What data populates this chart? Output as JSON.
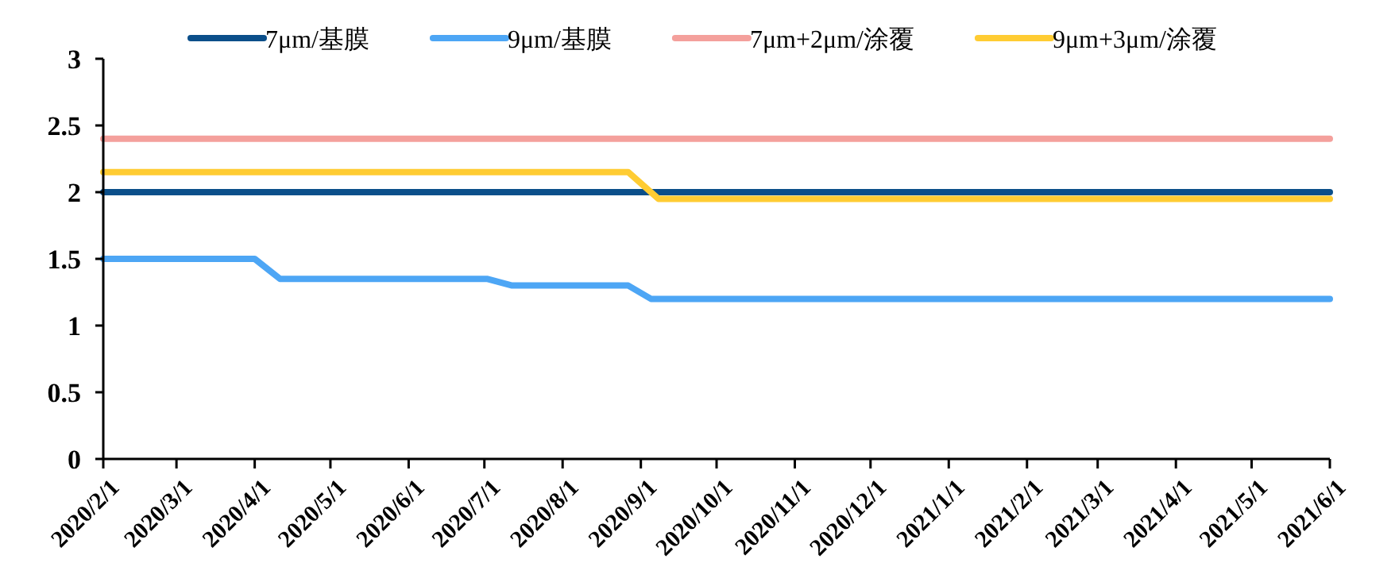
{
  "chart_data": {
    "type": "line",
    "series": [
      {
        "name": "7μm/基膜",
        "color": "#0b4f8a",
        "x": [
          "2020-02-01",
          "2021-06-01"
        ],
        "values": [
          2,
          2
        ]
      },
      {
        "name": "9μm/基膜",
        "color": "#4da6f5",
        "x": [
          "2020-02-01",
          "2020-04-01",
          "2020-04-11",
          "2020-07-02",
          "2020-07-12",
          "2020-08-27",
          "2020-09-05",
          "2021-06-01"
        ],
        "values": [
          1.5,
          1.5,
          1.35,
          1.35,
          1.3,
          1.3,
          1.2,
          1.2
        ]
      },
      {
        "name": "7μm+2μm/涂覆",
        "color": "#f4a09c",
        "x": [
          "2020-02-01",
          "2021-06-01"
        ],
        "values": [
          2.4,
          2.4
        ]
      },
      {
        "name": "9μm+3μm/涂覆",
        "color": "#ffcc33",
        "x": [
          "2020-02-01",
          "2020-08-27",
          "2020-09-08",
          "2021-06-01"
        ],
        "values": [
          2.15,
          2.15,
          1.95,
          1.95
        ]
      }
    ],
    "xlim": [
      "2020-02-01",
      "2021-06-01"
    ],
    "xticks": [
      {
        "value": "2020-02-01",
        "label": "2020/2/1"
      },
      {
        "value": "2020-03-01",
        "label": "2020/3/1"
      },
      {
        "value": "2020-04-01",
        "label": "2020/4/1"
      },
      {
        "value": "2020-05-01",
        "label": "2020/5/1"
      },
      {
        "value": "2020-06-01",
        "label": "2020/6/1"
      },
      {
        "value": "2020-07-01",
        "label": "2020/7/1"
      },
      {
        "value": "2020-08-01",
        "label": "2020/8/1"
      },
      {
        "value": "2020-09-01",
        "label": "2020/9/1"
      },
      {
        "value": "2020-10-01",
        "label": "2020/10/1"
      },
      {
        "value": "2020-11-01",
        "label": "2020/11/1"
      },
      {
        "value": "2020-12-01",
        "label": "2020/12/1"
      },
      {
        "value": "2021-01-01",
        "label": "2021/1/1"
      },
      {
        "value": "2021-02-01",
        "label": "2021/2/1"
      },
      {
        "value": "2021-03-01",
        "label": "2021/3/1"
      },
      {
        "value": "2021-04-01",
        "label": "2021/4/1"
      },
      {
        "value": "2021-05-01",
        "label": "2021/5/1"
      },
      {
        "value": "2021-06-01",
        "label": "2021/6/1"
      }
    ],
    "ylim": [
      0,
      3
    ],
    "yticks": [
      0,
      0.5,
      1,
      1.5,
      2,
      2.5,
      3
    ],
    "legend": "top"
  }
}
